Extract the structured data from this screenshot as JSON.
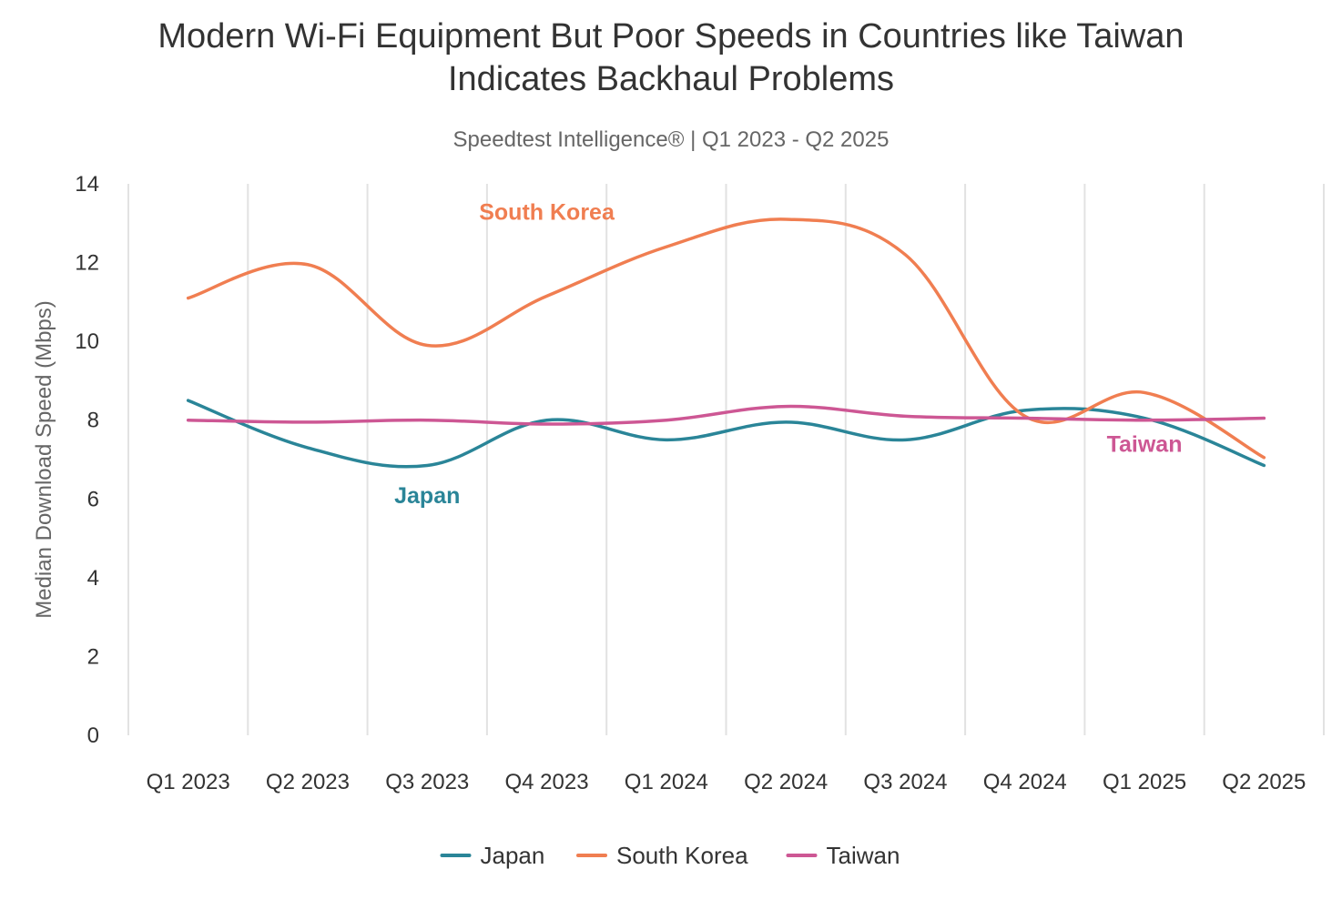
{
  "chart_data": {
    "type": "line",
    "title_lines": [
      "Modern Wi-Fi Equipment But Poor Speeds in Countries like Taiwan",
      "Indicates Backhaul Problems"
    ],
    "subtitle": "Speedtest Intelligence® | Q1 2023 - Q2 2025",
    "ylabel": "Median Download Speed (Mbps)",
    "xlabel": "",
    "ylim": [
      0,
      14
    ],
    "yticks": [
      0,
      2,
      4,
      6,
      8,
      10,
      12,
      14
    ],
    "grid": "vertical",
    "legend_position": "bottom",
    "categories": [
      "Q1 2023",
      "Q2 2023",
      "Q3 2023",
      "Q4 2023",
      "Q1 2024",
      "Q2 2024",
      "Q3 2024",
      "Q4 2024",
      "Q1 2025",
      "Q2 2025"
    ],
    "series": [
      {
        "name": "Japan",
        "color": "#2a8598",
        "values": [
          8.5,
          7.3,
          6.85,
          8.0,
          7.5,
          7.95,
          7.5,
          8.25,
          8.05,
          6.85
        ]
      },
      {
        "name": "South Korea",
        "color": "#f07e51",
        "values": [
          11.1,
          11.95,
          9.9,
          11.15,
          12.4,
          13.1,
          12.2,
          8.1,
          8.7,
          7.05
        ]
      },
      {
        "name": "Taiwan",
        "color": "#cd5794",
        "values": [
          8.0,
          7.95,
          8.0,
          7.9,
          8.0,
          8.35,
          8.1,
          8.05,
          8.0,
          8.05
        ]
      }
    ],
    "annotations": [
      {
        "text": "South Korea",
        "series": "South Korea",
        "x": "Q4 2023",
        "y": 13.3
      },
      {
        "text": "Japan",
        "series": "Japan",
        "x": "Q3 2023",
        "y": 6.1
      },
      {
        "text": "Taiwan",
        "series": "Taiwan",
        "x": "Q1 2025",
        "y": 7.4
      }
    ]
  }
}
